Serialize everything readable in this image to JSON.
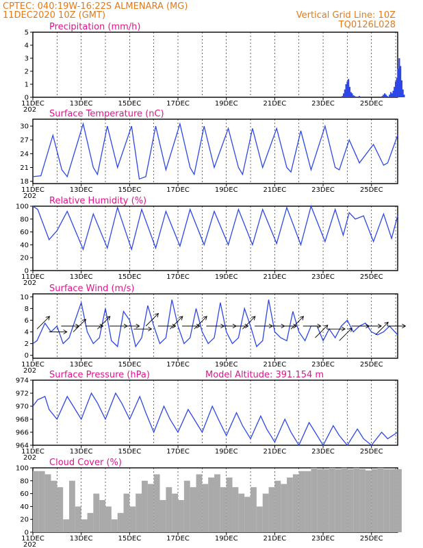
{
  "header": {
    "left1": "CPTEC:   040:19W-16:22S   ALMENARA (MG)",
    "left2": "11DEC2020 10Z (GMT)",
    "right1": "Vertical Grid Line: 10Z",
    "right2": "TQ0126L028"
  },
  "colors": {
    "series": "#2c46e8",
    "cloud": "#aaaaaa",
    "header": "#e07a1a",
    "title": "#e0148c"
  },
  "x_ticks": [
    "11DEC",
    "13DEC",
    "15DEC",
    "17DEC",
    "19DEC",
    "21DEC",
    "23DEC",
    "25DEC"
  ],
  "year_fragment": "202",
  "chart_data": [
    {
      "type": "bar",
      "title": "Precipitation (mm/h)",
      "ylim": [
        0,
        5
      ],
      "yticks": [
        "0",
        "1",
        "2",
        "3",
        "4",
        "5"
      ],
      "x": [
        12.8,
        12.85,
        12.9,
        12.95,
        13.0,
        13.05,
        13.1,
        13.15,
        13.2,
        13.25,
        13.3,
        13.35,
        13.4,
        13.45,
        13.5,
        14.4,
        14.45,
        14.5,
        14.55,
        14.6,
        14.65,
        14.7,
        14.75,
        14.8,
        14.85,
        14.9,
        14.95,
        15.0,
        15.05,
        15.1,
        15.15,
        15.2,
        15.25,
        15.3,
        15.35
      ],
      "values": [
        0.1,
        0.3,
        0.6,
        1.0,
        1.2,
        1.4,
        0.8,
        0.4,
        0.3,
        0.15,
        0.1,
        0.05,
        0.03,
        0.05,
        0.1,
        0.05,
        0.1,
        0.2,
        0.3,
        0.2,
        0.1,
        0.05,
        0.2,
        0.4,
        0.3,
        0.5,
        0.8,
        1.2,
        1.5,
        2.2,
        3.0,
        2.4,
        1.3,
        0.6,
        0.2
      ]
    },
    {
      "type": "line",
      "title": "Surface Temperature (nC)",
      "ylim": [
        17.5,
        31.5
      ],
      "yticks": [
        "18",
        "21",
        "24",
        "27",
        "30"
      ],
      "x": [
        0.0,
        0.33,
        0.83,
        1.2,
        1.42,
        2.08,
        2.5,
        2.67,
        3.08,
        3.5,
        4.08,
        4.4,
        4.67,
        5.08,
        5.5,
        6.08,
        6.5,
        6.67,
        7.08,
        7.5,
        8.08,
        8.5,
        8.67,
        9.08,
        9.5,
        10.08,
        10.5,
        10.67,
        11.08,
        11.5,
        12.08,
        12.5,
        12.67,
        13.08,
        13.5,
        14.08,
        14.5,
        14.67,
        15.08
      ],
      "values": [
        19.0,
        19.2,
        28.0,
        20.5,
        19.0,
        30.5,
        21.0,
        19.5,
        30.0,
        21.0,
        30.0,
        18.5,
        19.0,
        30.0,
        20.5,
        30.5,
        21.0,
        19.5,
        30.0,
        21.0,
        29.5,
        21.0,
        19.5,
        29.5,
        21.0,
        29.5,
        21.0,
        20.0,
        29.0,
        20.5,
        30.0,
        21.0,
        20.5,
        27.0,
        22.0,
        26.0,
        21.5,
        22.0,
        28.0
      ]
    },
    {
      "type": "line",
      "title": "Relative Humidity (%)",
      "ylim": [
        0,
        100
      ],
      "yticks": [
        "0",
        "20",
        "40",
        "60",
        "80",
        "100"
      ],
      "x": [
        0.0,
        0.2,
        0.67,
        1.0,
        1.42,
        2.08,
        2.5,
        3.08,
        3.5,
        4.08,
        4.5,
        5.08,
        5.5,
        6.08,
        6.5,
        7.08,
        7.5,
        8.08,
        8.5,
        9.08,
        9.5,
        10.08,
        10.5,
        11.08,
        11.5,
        12.08,
        12.5,
        12.83,
        13.08,
        13.33,
        13.67,
        14.08,
        14.5,
        14.83,
        15.08
      ],
      "values": [
        100,
        95,
        48,
        62,
        92,
        33,
        88,
        35,
        98,
        33,
        95,
        35,
        92,
        38,
        95,
        40,
        92,
        40,
        95,
        40,
        95,
        42,
        98,
        40,
        100,
        45,
        95,
        55,
        90,
        80,
        85,
        45,
        88,
        50,
        85
      ]
    },
    {
      "type": "line",
      "title": "Surface Wind (m/s)",
      "ylim": [
        -0.5,
        10.5
      ],
      "yticks": [
        "0",
        "2",
        "4",
        "6",
        "8",
        "10"
      ],
      "x": [
        0.0,
        0.17,
        0.5,
        0.75,
        1.0,
        1.25,
        1.5,
        1.75,
        2.0,
        2.25,
        2.5,
        2.75,
        3.0,
        3.25,
        3.5,
        3.75,
        4.0,
        4.25,
        4.5,
        4.75,
        5.0,
        5.25,
        5.5,
        5.75,
        6.0,
        6.25,
        6.5,
        6.75,
        7.0,
        7.25,
        7.5,
        7.75,
        8.0,
        8.25,
        8.5,
        8.75,
        9.0,
        9.25,
        9.5,
        9.75,
        10.0,
        10.25,
        10.5,
        10.75,
        11.0,
        11.25,
        11.5,
        11.75,
        12.0,
        12.25,
        12.5,
        12.75,
        13.0,
        13.25,
        13.5,
        13.75,
        14.0,
        14.25,
        14.5,
        14.75,
        15.08
      ],
      "values": [
        2.0,
        2.5,
        5.5,
        4.0,
        5.0,
        2.0,
        3.0,
        6.0,
        9.0,
        4.0,
        2.0,
        3.0,
        8.0,
        2.5,
        1.5,
        7.5,
        6.0,
        1.5,
        3.0,
        8.5,
        5.0,
        2.0,
        3.0,
        9.5,
        5.0,
        2.0,
        3.0,
        8.0,
        4.0,
        2.0,
        3.0,
        9.0,
        4.0,
        2.0,
        3.0,
        8.0,
        5.0,
        1.5,
        2.5,
        9.5,
        4.0,
        3.0,
        2.5,
        7.5,
        4.0,
        2.5,
        5.0,
        5.0,
        2.5,
        4.5,
        3.0,
        5.0,
        6.0,
        4.0,
        5.0,
        5.5,
        4.0,
        3.5,
        4.0,
        5.0,
        3.5
      ],
      "arrows_x": [
        0.17,
        0.67,
        1.17,
        1.67,
        2.17,
        2.67,
        3.17,
        3.67,
        4.17,
        4.67,
        5.17,
        5.67,
        6.17,
        6.67,
        7.17,
        7.67,
        8.17,
        8.67,
        9.17,
        9.67,
        10.17,
        10.67,
        11.17,
        11.67,
        12.17,
        12.67,
        13.17,
        13.67,
        14.17,
        14.67
      ],
      "arrows_base": [
        4.5,
        4.0,
        5.0,
        4.0,
        5.0,
        4.5,
        5.0,
        5.0,
        4.5,
        5.0,
        5.0,
        4.5,
        5.0,
        4.5,
        5.0,
        5.0,
        5.0,
        4.5,
        5.0,
        5.0,
        5.0,
        4.5,
        5.0,
        3.0,
        4.5,
        2.5,
        5.0,
        5.0,
        3.5,
        5.0
      ],
      "arrows_dir": [
        225,
        180,
        180,
        225,
        180,
        225,
        180,
        180,
        180,
        225,
        180,
        225,
        180,
        225,
        180,
        180,
        180,
        225,
        180,
        180,
        180,
        225,
        180,
        225,
        180,
        225,
        180,
        180,
        225,
        180
      ]
    },
    {
      "type": "line",
      "title": "Surface Pressure (hPa)",
      "annotation": "Model Altitude: 391.154  m",
      "ylim": [
        964,
        974
      ],
      "yticks": [
        "964",
        "966",
        "968",
        "970",
        "972",
        "974"
      ],
      "x": [
        0.0,
        0.2,
        0.5,
        0.67,
        1.0,
        1.42,
        1.67,
        2.0,
        2.42,
        2.67,
        3.0,
        3.42,
        3.67,
        4.0,
        4.42,
        4.67,
        5.0,
        5.42,
        5.67,
        6.0,
        6.42,
        6.67,
        7.0,
        7.42,
        7.67,
        8.0,
        8.42,
        8.67,
        9.0,
        9.42,
        9.67,
        10.0,
        10.42,
        10.67,
        11.0,
        11.42,
        11.67,
        12.0,
        12.42,
        12.67,
        13.0,
        13.42,
        13.67,
        14.0,
        14.42,
        14.67,
        15.08
      ],
      "values": [
        970.0,
        971.0,
        971.5,
        969.5,
        968.0,
        971.5,
        970.0,
        968.0,
        972.0,
        970.5,
        968.0,
        972.0,
        970.5,
        968.0,
        971.5,
        969.0,
        966.0,
        970.0,
        968.0,
        966.0,
        969.5,
        968.0,
        966.0,
        970.0,
        968.0,
        965.5,
        969.0,
        967.0,
        965.0,
        968.5,
        966.5,
        964.5,
        968.0,
        966.0,
        964.0,
        967.5,
        966.0,
        964.0,
        967.0,
        965.5,
        964.0,
        966.5,
        965.0,
        964.0,
        966.0,
        965.0,
        966.0
      ]
    },
    {
      "type": "bar",
      "title": "Cloud Cover (%)",
      "ylim": [
        0,
        100
      ],
      "yticks": [
        "0",
        "20",
        "40",
        "60",
        "80",
        "100"
      ],
      "x": [
        0.0,
        0.25,
        0.5,
        0.75,
        1.0,
        1.25,
        1.5,
        1.75,
        2.0,
        2.25,
        2.5,
        2.75,
        3.0,
        3.25,
        3.5,
        3.75,
        4.0,
        4.25,
        4.5,
        4.75,
        5.0,
        5.25,
        5.5,
        5.75,
        6.0,
        6.25,
        6.5,
        6.75,
        7.0,
        7.25,
        7.5,
        7.75,
        8.0,
        8.25,
        8.5,
        8.75,
        9.0,
        9.25,
        9.5,
        9.75,
        10.0,
        10.25,
        10.5,
        10.75,
        11.0,
        11.25,
        11.5,
        11.75,
        12.0,
        12.25,
        12.5,
        12.75,
        13.0,
        13.25,
        13.5,
        13.75,
        14.0,
        14.25,
        14.5,
        14.75,
        15.0
      ],
      "values": [
        95,
        95,
        90,
        80,
        70,
        20,
        80,
        40,
        20,
        30,
        60,
        50,
        40,
        20,
        30,
        60,
        40,
        60,
        80,
        75,
        90,
        50,
        70,
        60,
        50,
        80,
        70,
        90,
        75,
        85,
        90,
        70,
        85,
        70,
        60,
        55,
        70,
        40,
        60,
        70,
        80,
        75,
        85,
        90,
        95,
        95,
        100,
        98,
        98,
        100,
        98,
        100,
        98,
        100,
        98,
        96,
        98,
        100,
        98,
        98,
        98
      ]
    }
  ]
}
